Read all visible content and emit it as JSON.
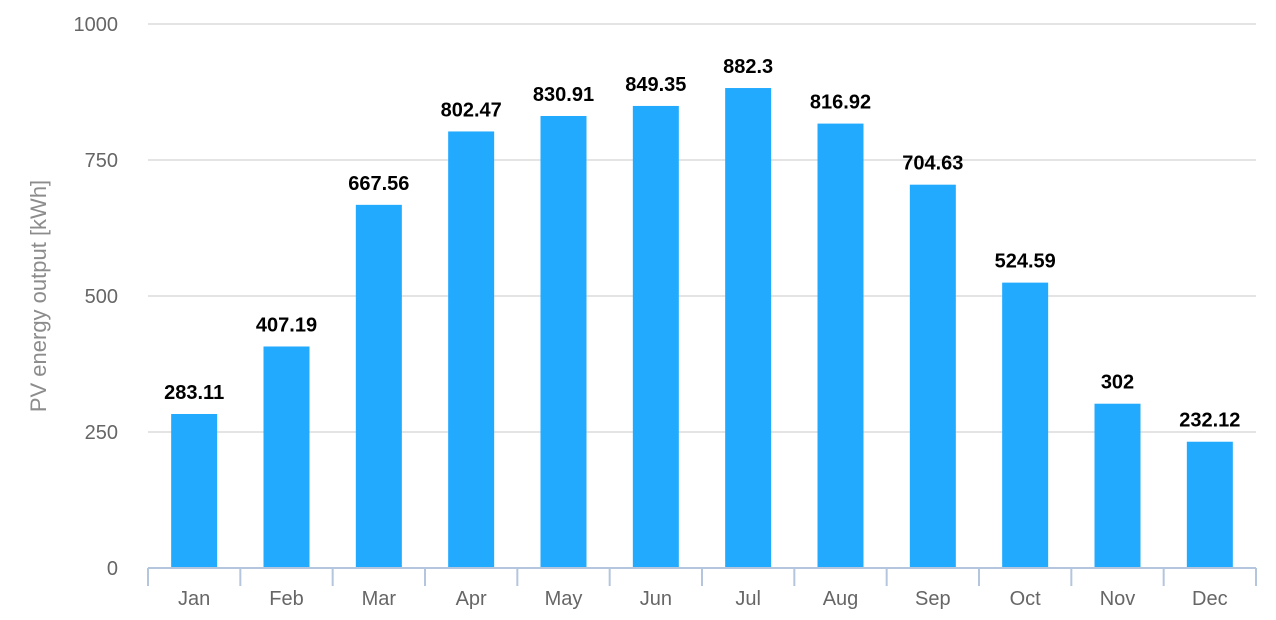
{
  "chart_data": {
    "type": "bar",
    "title": "",
    "xlabel": "",
    "ylabel": "PV energy output [kWh]",
    "categories": [
      "Jan",
      "Feb",
      "Mar",
      "Apr",
      "May",
      "Jun",
      "Jul",
      "Aug",
      "Sep",
      "Oct",
      "Nov",
      "Dec"
    ],
    "values": [
      283.11,
      407.19,
      667.56,
      802.47,
      830.91,
      849.35,
      882.3,
      816.92,
      704.63,
      524.59,
      302,
      232.12
    ],
    "value_labels": [
      "283.11",
      "407.19",
      "667.56",
      "802.47",
      "830.91",
      "849.35",
      "882.3",
      "816.92",
      "704.63",
      "524.59",
      "302",
      "232.12"
    ],
    "ylim": [
      0,
      1000
    ],
    "yticks": [
      0,
      250,
      500,
      750,
      1000
    ],
    "ytick_labels": [
      "0",
      "250",
      "500",
      "750",
      "1000"
    ],
    "grid": true,
    "legend": "none",
    "colors": {
      "bar": "#22aaff",
      "grid": "#dcdcdc",
      "axis": "#b4c6de",
      "tick_text": "#666666",
      "axis_title": "#8c8c8c",
      "data_label": "#000000"
    }
  }
}
